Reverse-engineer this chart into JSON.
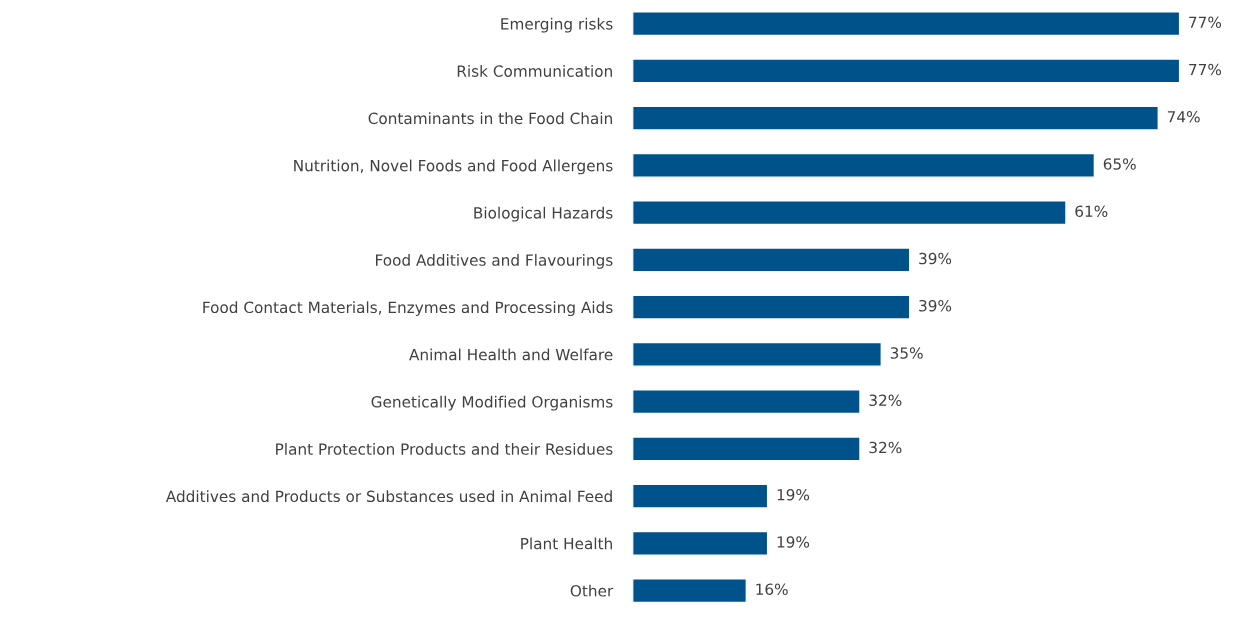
{
  "chart_data": {
    "type": "bar",
    "orientation": "horizontal",
    "categories": [
      "Emerging risks",
      "Risk Communication",
      "Contaminants in the Food Chain",
      "Nutrition, Novel Foods and Food Allergens",
      "Biological Hazards",
      "Food Additives and Flavourings",
      "Food Contact Materials, Enzymes and Processing Aids",
      "Animal Health and Welfare",
      "Genetically Modified Organisms",
      "Plant Protection Products and their Residues",
      "Additives and Products or Substances used in Animal Feed",
      "Plant Health",
      "Other"
    ],
    "values": [
      77,
      77,
      74,
      65,
      61,
      39,
      39,
      35,
      32,
      32,
      19,
      19,
      16
    ],
    "value_labels": [
      "77%",
      "77%",
      "74%",
      "65%",
      "61%",
      "39%",
      "39%",
      "35%",
      "32%",
      "32%",
      "19%",
      "19%",
      "16%"
    ],
    "color": "#00538a",
    "grid": false,
    "legend": false
  }
}
